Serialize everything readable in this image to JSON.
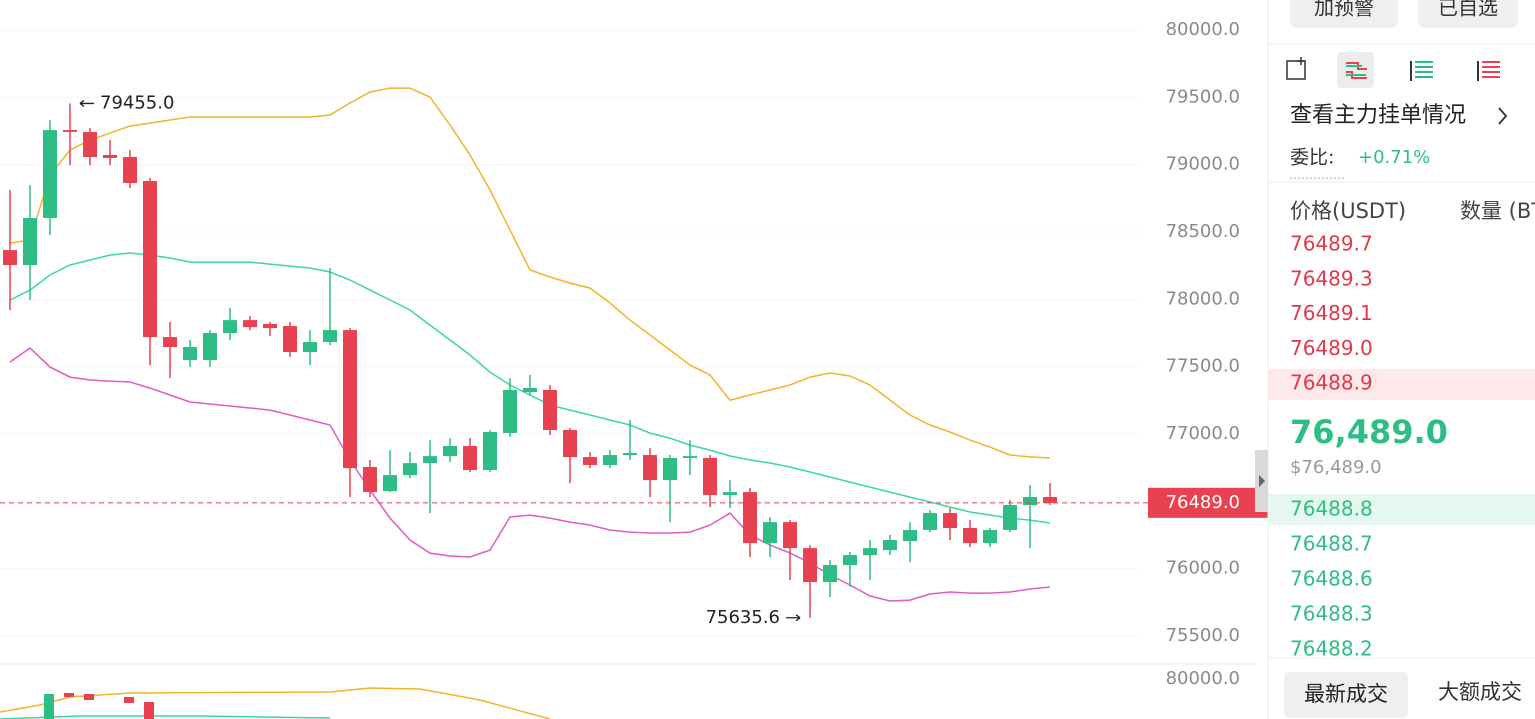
{
  "chart_data": {
    "type": "candlestick",
    "up_color": "#2ebd85",
    "down_color": "#e8414f",
    "open": [
      78366,
      78255,
      78604,
      79257,
      79243,
      79072,
      79057,
      78879,
      77720,
      77549,
      77549,
      77750,
      77846,
      77817,
      77802,
      77609,
      77683,
      77772,
      76755,
      76576,
      76695,
      76784,
      76836,
      76911,
      76733,
      77008,
      77312,
      77327,
      77030,
      76829,
      76770,
      76844,
      76844,
      76658,
      76822,
      76822,
      76547,
      76569,
      76190,
      76346,
      76153,
      75901,
      76027,
      76101,
      76138,
      76205,
      76287,
      76413,
      76302,
      76190,
      76287,
      76473,
      76532
    ],
    "high": [
      78812,
      78849,
      79332,
      79455,
      79272,
      79183,
      79109,
      78901,
      77832,
      77698,
      77772,
      77936,
      77876,
      77832,
      77832,
      77772,
      78233,
      77787,
      76807,
      76881,
      76866,
      76955,
      76970,
      76970,
      77030,
      77416,
      77438,
      77364,
      77045,
      76866,
      76881,
      77104,
      76896,
      76844,
      76955,
      76844,
      76658,
      76599,
      76383,
      76361,
      76175,
      76064,
      76124,
      76213,
      76250,
      76346,
      76435,
      76450,
      76361,
      76302,
      76510,
      76621,
      76636
    ],
    "low": [
      77921,
      77995,
      78478,
      78997,
      78997,
      78997,
      78827,
      77512,
      77416,
      77497,
      77497,
      77698,
      77772,
      77728,
      77572,
      77512,
      77661,
      76532,
      76532,
      76569,
      76673,
      76413,
      76792,
      76718,
      76718,
      76978,
      77289,
      76993,
      76636,
      76747,
      76747,
      76807,
      76532,
      76346,
      76695,
      76458,
      76450,
      76086,
      76086,
      75916,
      75635.6,
      75789,
      75864,
      75916,
      76101,
      76049,
      76272,
      76213,
      76161,
      76161,
      76272,
      76153,
      76473
    ],
    "close": [
      78255,
      78604,
      79257,
      79243,
      79057,
      79050,
      78864,
      77720,
      77646,
      77646,
      77750,
      77846,
      77794,
      77787,
      77609,
      77683,
      77772,
      76747,
      76569,
      76695,
      76784,
      76836,
      76911,
      76733,
      77015,
      77327,
      77342,
      77030,
      76829,
      76770,
      76844,
      76859,
      76658,
      76822,
      76836,
      76547,
      76569,
      76190,
      76346,
      76153,
      75901,
      76027,
      76101,
      76153,
      76213,
      76287,
      76413,
      76302,
      76190,
      76287,
      76473,
      76532,
      76489
    ],
    "bands": [
      {
        "color": "#f0b429",
        "values": [
          78418,
          78441,
          78923,
          79109,
          79183,
          79235,
          79287,
          79309,
          79332,
          79354,
          79354,
          79354,
          79354,
          79354,
          79354,
          79354,
          79369,
          79458,
          79540,
          79569,
          79569,
          79502,
          79295,
          79072,
          78812,
          78515,
          78218,
          78166,
          78121,
          78084,
          77973,
          77846,
          77735,
          77624,
          77512,
          77438,
          77252,
          77290,
          77327,
          77364,
          77423,
          77453,
          77431,
          77364,
          77252,
          77141,
          77067,
          77015,
          76955,
          76903,
          76844,
          76830,
          76822
        ]
      },
      {
        "color": "#3dd6a6",
        "values": [
          77995,
          78069,
          78181,
          78255,
          78292,
          78329,
          78344,
          78329,
          78307,
          78277,
          78277,
          78277,
          78277,
          78262,
          78247,
          78233,
          78203,
          78144,
          78069,
          77995,
          77921,
          77809,
          77698,
          77587,
          77460,
          77364,
          77290,
          77215,
          77178,
          77141,
          77104,
          77067,
          77007,
          76970,
          76918,
          76881,
          76837,
          76807,
          76785,
          76755,
          76718,
          76681,
          76643,
          76606,
          76569,
          76532,
          76495,
          76458,
          76421,
          76398,
          76376,
          76361,
          76339
        ]
      },
      {
        "color": "#e05bc4",
        "values": [
          77535,
          77639,
          77497,
          77423,
          77401,
          77393,
          77386,
          77341,
          77290,
          77238,
          77223,
          77208,
          77193,
          77178,
          77141,
          77104,
          77067,
          76807,
          76584,
          76376,
          76213,
          76116,
          76094,
          76087,
          76138,
          76384,
          76398,
          76376,
          76346,
          76324,
          76287,
          76272,
          76265,
          76265,
          76272,
          76324,
          76413,
          76250,
          76176,
          76116,
          76042,
          75953,
          75879,
          75797,
          75760,
          75767,
          75812,
          75827,
          75819,
          75819,
          75827,
          75849,
          75864
        ]
      }
    ],
    "ylim": [
      75322,
      80223
    ],
    "yticks": [
      {
        "value": 75500,
        "label": "75500.0"
      },
      {
        "value": 76000,
        "label": "76000.0"
      },
      {
        "value": 76500,
        "label": "76500.0"
      },
      {
        "value": 77000,
        "label": "77000.0"
      },
      {
        "value": 77500,
        "label": "77500.0"
      },
      {
        "value": 78000,
        "label": "78000.0"
      },
      {
        "value": 78500,
        "label": "78500.0"
      },
      {
        "value": 79000,
        "label": "79000.0"
      },
      {
        "value": 79500,
        "label": "79500.0"
      },
      {
        "value": 80000,
        "label": "80000.0"
      }
    ],
    "grid": true,
    "last_price": {
      "value": 76489.0,
      "label": "76489.0"
    },
    "high_label": {
      "value": 79455.0,
      "label": "79455.0"
    },
    "low_label": {
      "value": 75635.6,
      "label": "75635.6"
    },
    "sub_chart_label": "80000.0"
  },
  "panel": {
    "buttons": [
      "加预警",
      "已自选"
    ],
    "depth_link": "查看主力挂单情况",
    "ratio_label": "委比:",
    "ratio_value": "+0.71%",
    "columns": [
      "价格(USDT)",
      "数量 (BTC)"
    ],
    "asks": [
      "76489.7",
      "76489.3",
      "76489.1",
      "76489.0",
      "76488.9"
    ],
    "last": "76,489.0",
    "last_usd": "$76,489.0",
    "bids": [
      "76488.8",
      "76488.7",
      "76488.6",
      "76488.3",
      "76488.2"
    ],
    "tabs": [
      "最新成交",
      "大额成交"
    ]
  }
}
